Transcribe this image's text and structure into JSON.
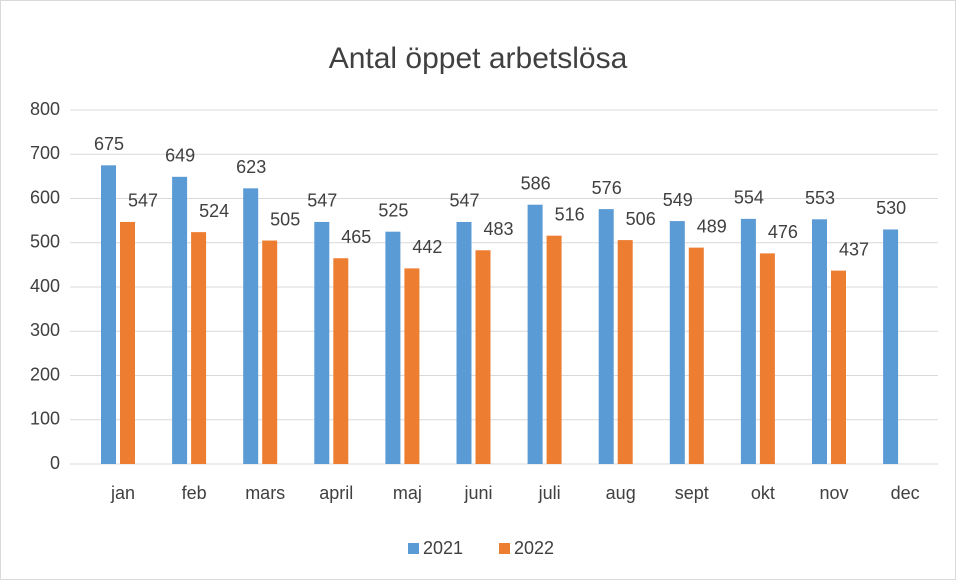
{
  "chart_data": {
    "type": "bar",
    "title": "Antal öppet arbetslösa",
    "categories": [
      "jan",
      "feb",
      "mars",
      "april",
      "maj",
      "juni",
      "juli",
      "aug",
      "sept",
      "okt",
      "nov",
      "dec"
    ],
    "series": [
      {
        "name": "2021",
        "color": "#5b9bd5",
        "values": [
          675,
          649,
          623,
          547,
          525,
          547,
          586,
          576,
          549,
          554,
          553,
          530
        ]
      },
      {
        "name": "2022",
        "color": "#ed7d31",
        "values": [
          547,
          524,
          505,
          465,
          442,
          483,
          516,
          506,
          489,
          476,
          437,
          null
        ]
      }
    ],
    "ylim": [
      0,
      800
    ],
    "yticks": [
      0,
      100,
      200,
      300,
      400,
      500,
      600,
      700,
      800
    ],
    "grid": true,
    "legend": "bottom"
  }
}
